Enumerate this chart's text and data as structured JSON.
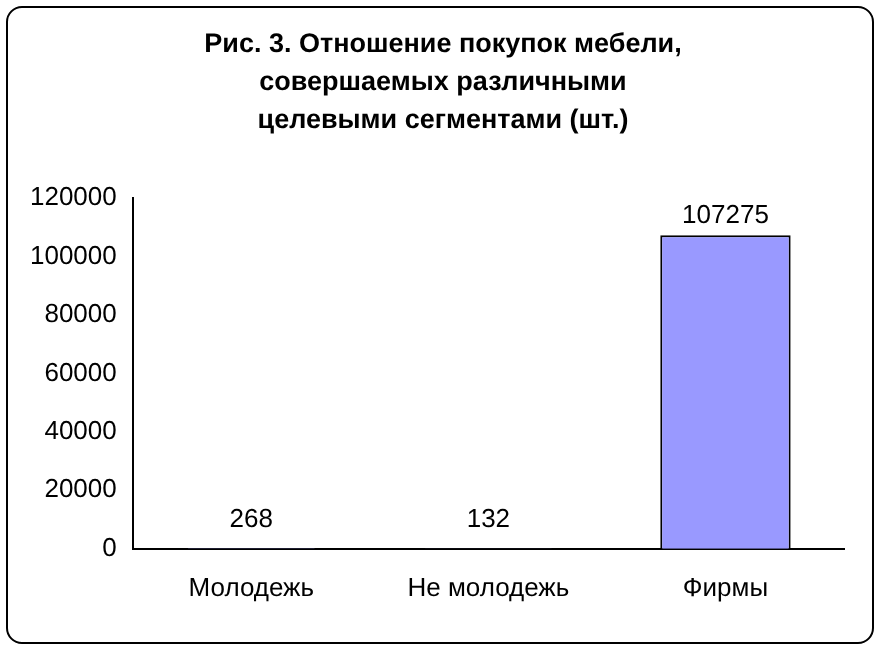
{
  "chart_data": {
    "type": "bar",
    "title": "Рис. 3. Отношение покупок мебели, совершаемых различными целевыми сегментами (шт.)",
    "categories": [
      "Молодежь",
      "Не молодежь",
      "Фирмы"
    ],
    "values": [
      268,
      132,
      107275
    ],
    "color": "#9999ff",
    "ylim": [
      0,
      120000
    ],
    "yticks": [
      0,
      20000,
      40000,
      60000,
      80000,
      100000,
      120000
    ],
    "data_labels": true,
    "legend": false,
    "grid": false
  }
}
